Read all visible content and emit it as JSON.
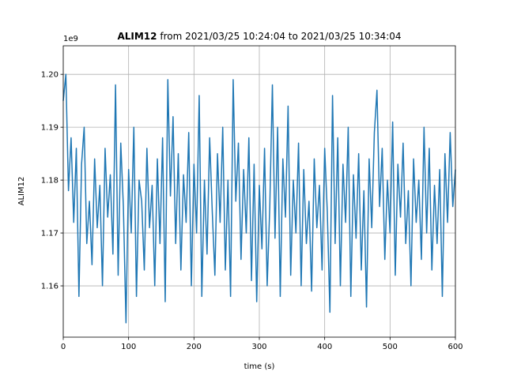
{
  "chart_data": {
    "type": "line",
    "title_bold": "ALIM12",
    "title": "from 2021/03/25 10:24:04 to 2021/03/25 10:34:04",
    "offset_text": "1e9",
    "xlabel": "time (s)",
    "ylabel": "ALIM12",
    "color": "#1f77b4",
    "grid": true,
    "xlim": [
      0,
      600
    ],
    "xticks": [
      0,
      100,
      200,
      300,
      400,
      500,
      600
    ],
    "ylim": [
      1.1503,
      1.2054
    ],
    "yticks": [
      1.16,
      1.17,
      1.18,
      1.19,
      {
        "value": 1.2,
        "label": "1.20"
      }
    ],
    "x": [
      0,
      4,
      8,
      12,
      16,
      20,
      24,
      28,
      32,
      36,
      40,
      44,
      48,
      52,
      56,
      60,
      64,
      68,
      72,
      76,
      80,
      84,
      88,
      92,
      96,
      100,
      104,
      108,
      112,
      116,
      120,
      124,
      128,
      132,
      136,
      140,
      144,
      148,
      152,
      156,
      160,
      164,
      168,
      172,
      176,
      180,
      184,
      188,
      192,
      196,
      200,
      204,
      208,
      212,
      216,
      220,
      224,
      228,
      232,
      236,
      240,
      244,
      248,
      252,
      256,
      260,
      264,
      268,
      272,
      276,
      280,
      284,
      288,
      292,
      296,
      300,
      304,
      308,
      312,
      316,
      320,
      324,
      328,
      332,
      336,
      340,
      344,
      348,
      352,
      356,
      360,
      364,
      368,
      372,
      376,
      380,
      384,
      388,
      392,
      396,
      400,
      404,
      408,
      412,
      416,
      420,
      424,
      428,
      432,
      436,
      440,
      444,
      448,
      452,
      456,
      460,
      464,
      468,
      472,
      476,
      480,
      484,
      488,
      492,
      496,
      500,
      504,
      508,
      512,
      516,
      520,
      524,
      528,
      532,
      536,
      540,
      544,
      548,
      552,
      556,
      560,
      564,
      568,
      572,
      576,
      580,
      584,
      588,
      592,
      596,
      600
    ],
    "values": [
      1.195,
      1.2,
      1.178,
      1.188,
      1.172,
      1.186,
      1.158,
      1.183,
      1.19,
      1.168,
      1.176,
      1.164,
      1.184,
      1.171,
      1.179,
      1.16,
      1.186,
      1.173,
      1.181,
      1.166,
      1.198,
      1.162,
      1.187,
      1.175,
      1.153,
      1.182,
      1.17,
      1.19,
      1.158,
      1.18,
      1.176,
      1.163,
      1.186,
      1.171,
      1.179,
      1.16,
      1.184,
      1.168,
      1.188,
      1.157,
      1.199,
      1.177,
      1.192,
      1.168,
      1.185,
      1.163,
      1.181,
      1.172,
      1.189,
      1.16,
      1.183,
      1.17,
      1.196,
      1.158,
      1.18,
      1.166,
      1.188,
      1.174,
      1.162,
      1.185,
      1.172,
      1.19,
      1.163,
      1.18,
      1.158,
      1.199,
      1.176,
      1.187,
      1.165,
      1.182,
      1.17,
      1.188,
      1.161,
      1.183,
      1.157,
      1.179,
      1.167,
      1.186,
      1.16,
      1.175,
      1.198,
      1.169,
      1.19,
      1.158,
      1.184,
      1.173,
      1.194,
      1.162,
      1.18,
      1.17,
      1.187,
      1.16,
      1.182,
      1.168,
      1.176,
      1.159,
      1.184,
      1.171,
      1.179,
      1.163,
      1.186,
      1.174,
      1.155,
      1.196,
      1.168,
      1.188,
      1.16,
      1.183,
      1.172,
      1.19,
      1.158,
      1.181,
      1.169,
      1.185,
      1.163,
      1.178,
      1.156,
      1.184,
      1.171,
      1.189,
      1.197,
      1.175,
      1.186,
      1.165,
      1.18,
      1.17,
      1.191,
      1.162,
      1.183,
      1.173,
      1.187,
      1.168,
      1.178,
      1.16,
      1.184,
      1.172,
      1.18,
      1.165,
      1.19,
      1.17,
      1.186,
      1.163,
      1.179,
      1.168,
      1.182,
      1.158,
      1.185,
      1.172,
      1.189,
      1.175,
      1.182
    ]
  }
}
